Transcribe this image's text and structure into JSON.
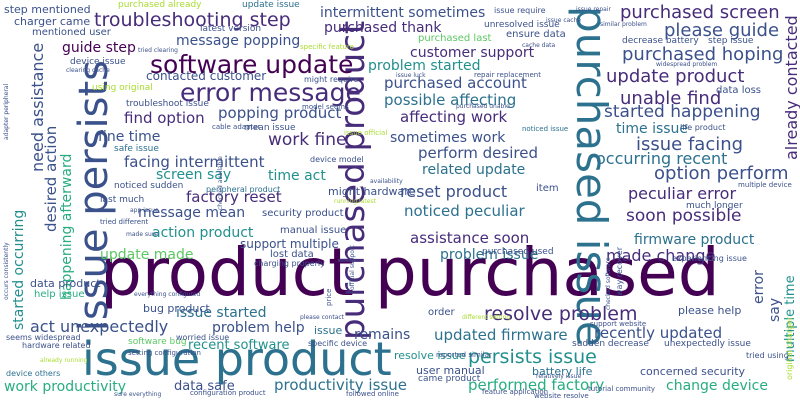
{
  "words": [
    {
      "id": "product-purchased",
      "text": "product purchased"
    },
    {
      "id": "issue-product",
      "text": "issue product"
    },
    {
      "id": "purchased-issue",
      "text": "purchased issue"
    },
    {
      "id": "issue-persists",
      "text": "issue persists"
    },
    {
      "id": "purchased-product",
      "text": "purchased product"
    },
    {
      "id": "software-update",
      "text": "software update"
    },
    {
      "id": "error-message",
      "text": "error message"
    },
    {
      "id": "troubleshooting-step",
      "text": "troubleshooting step"
    },
    {
      "id": "purchased-screen",
      "text": "purchased screen"
    },
    {
      "id": "please-guide",
      "text": "please guide"
    },
    {
      "id": "purchased-hoping",
      "text": "purchased hoping"
    },
    {
      "id": "update-product",
      "text": "update product"
    },
    {
      "id": "unable-find",
      "text": "unable find"
    },
    {
      "id": "started-happening",
      "text": "started happening"
    },
    {
      "id": "time-issue",
      "text": "time issue"
    },
    {
      "id": "issue-facing",
      "text": "issue facing"
    },
    {
      "id": "occurring-recent",
      "text": "occurring recent"
    },
    {
      "id": "option-perform",
      "text": "option perform"
    },
    {
      "id": "peculiar-error",
      "text": "peculiar error"
    },
    {
      "id": "soon-possible",
      "text": "soon possible"
    },
    {
      "id": "firmware-product",
      "text": "firmware product"
    },
    {
      "id": "made-change",
      "text": "made change"
    },
    {
      "id": "resolve-problem",
      "text": "resolve problem"
    },
    {
      "id": "persists-issue",
      "text": "persists issue"
    },
    {
      "id": "updated-firmware",
      "text": "updated firmware"
    },
    {
      "id": "recently-updated",
      "text": "recently updated"
    },
    {
      "id": "performed-factory",
      "text": "performed factory"
    },
    {
      "id": "change-device",
      "text": "change device"
    },
    {
      "id": "productivity-issue",
      "text": "productivity issue"
    },
    {
      "id": "work-productivity",
      "text": "work productivity"
    },
    {
      "id": "data-safe",
      "text": "data safe"
    },
    {
      "id": "act-unexpectedly",
      "text": "act unexpectedly"
    },
    {
      "id": "problem-help",
      "text": "problem help"
    },
    {
      "id": "recent-software",
      "text": "recent software"
    },
    {
      "id": "issue-started",
      "text": "issue started"
    },
    {
      "id": "remains",
      "text": "remains"
    },
    {
      "id": "issue",
      "text": "issue"
    },
    {
      "id": "assistance-soon",
      "text": "assistance soon"
    },
    {
      "id": "problem-issue",
      "text": "problem issue"
    },
    {
      "id": "reset-product",
      "text": "reset product"
    },
    {
      "id": "related-update",
      "text": "related update"
    },
    {
      "id": "noticed-peculiar",
      "text": "noticed peculiar"
    },
    {
      "id": "perform-desired",
      "text": "perform desired"
    },
    {
      "id": "sometimes-work",
      "text": "sometimes work"
    },
    {
      "id": "affecting-work",
      "text": "affecting work"
    },
    {
      "id": "possible-affecting",
      "text": "possible affecting"
    },
    {
      "id": "purchased-account",
      "text": "purchased account"
    },
    {
      "id": "customer-support",
      "text": "customer support"
    },
    {
      "id": "problem-started",
      "text": "problem started"
    },
    {
      "id": "intermittent-sometimes",
      "text": "intermittent sometimes"
    },
    {
      "id": "purchased-thank",
      "text": "purchased thank"
    },
    {
      "id": "message-popping",
      "text": "message popping"
    },
    {
      "id": "guide-step",
      "text": "guide step"
    },
    {
      "id": "contacted-customer",
      "text": "contacted customer"
    },
    {
      "id": "find-option",
      "text": "find option"
    },
    {
      "id": "popping-product",
      "text": "popping product"
    },
    {
      "id": "work-fine",
      "text": "work fine"
    },
    {
      "id": "fine-time",
      "text": "fine time"
    },
    {
      "id": "facing-intermittent",
      "text": "facing intermittent"
    },
    {
      "id": "screen-say",
      "text": "screen say"
    },
    {
      "id": "time-act",
      "text": "time act"
    },
    {
      "id": "factory-reset",
      "text": "factory reset"
    },
    {
      "id": "message-mean",
      "text": "message mean"
    },
    {
      "id": "action-product",
      "text": "action product"
    },
    {
      "id": "update-made",
      "text": "update made"
    },
    {
      "id": "support-multiple",
      "text": "support multiple"
    },
    {
      "id": "need-assistance",
      "text": "need assistance"
    },
    {
      "id": "desired-action",
      "text": "desired action"
    },
    {
      "id": "happening-afterward",
      "text": "happening afterward"
    },
    {
      "id": "started-occurring",
      "text": "started occurring"
    },
    {
      "id": "already-contacted",
      "text": "already contacted"
    },
    {
      "id": "step-mentioned",
      "text": "step mentioned"
    },
    {
      "id": "purchased-already",
      "text": "purchased already"
    },
    {
      "id": "update-issue",
      "text": "update issue"
    },
    {
      "id": "charger-came",
      "text": "charger came"
    },
    {
      "id": "mentioned-user",
      "text": "mentioned user"
    },
    {
      "id": "latest-version",
      "text": "latest version"
    },
    {
      "id": "device-issue",
      "text": "device issue"
    },
    {
      "id": "using-original",
      "text": "using original"
    },
    {
      "id": "troubleshoot-issue",
      "text": "troubleshoot issue"
    },
    {
      "id": "mean-issue",
      "text": "mean issue"
    },
    {
      "id": "safe-issue",
      "text": "safe issue"
    },
    {
      "id": "noticed-sudden",
      "text": "noticed sudden"
    },
    {
      "id": "last-much",
      "text": "last much"
    },
    {
      "id": "tried-different",
      "text": "tried different"
    },
    {
      "id": "security-product",
      "text": "security product"
    },
    {
      "id": "manual-issue",
      "text": "manual issue"
    },
    {
      "id": "might-hardware",
      "text": "might hardware"
    },
    {
      "id": "item",
      "text": "item"
    },
    {
      "id": "purchased-used",
      "text": "purchased used"
    },
    {
      "id": "data-product",
      "text": "data product"
    },
    {
      "id": "help-issue",
      "text": "help issue"
    },
    {
      "id": "bug-product",
      "text": "bug product"
    },
    {
      "id": "software-bug",
      "text": "software bug"
    },
    {
      "id": "hardware-related",
      "text": "hardware related"
    },
    {
      "id": "seems-widespread",
      "text": "seems widespread"
    },
    {
      "id": "device-others",
      "text": "device others"
    },
    {
      "id": "user-manual",
      "text": "user manual"
    },
    {
      "id": "came-product",
      "text": "came product"
    },
    {
      "id": "resolve-issue",
      "text": "resolve issue"
    },
    {
      "id": "battery-life",
      "text": "battery life"
    },
    {
      "id": "concerned-security",
      "text": "concerned security"
    },
    {
      "id": "unexpectedly-issue",
      "text": "unexpectedly issue"
    },
    {
      "id": "please-help",
      "text": "please help"
    },
    {
      "id": "data-loss",
      "text": "data loss"
    },
    {
      "id": "much-longer",
      "text": "much longer"
    },
    {
      "id": "multiple-time",
      "text": "multiple time"
    },
    {
      "id": "order",
      "text": "order"
    },
    {
      "id": "say",
      "text": "say"
    },
    {
      "id": "error",
      "text": "error"
    },
    {
      "id": "decrease-battery",
      "text": "decrease battery"
    },
    {
      "id": "ensure-data",
      "text": "ensure data"
    },
    {
      "id": "purchased-last",
      "text": "purchased last"
    },
    {
      "id": "unresolved-issue",
      "text": "unresolved issue"
    },
    {
      "id": "issue-require",
      "text": "issue require"
    },
    {
      "id": "lost-data",
      "text": "lost data"
    },
    {
      "id": "charging-properly",
      "text": "charging properly"
    },
    {
      "id": "worried-issue",
      "text": "worried issue"
    },
    {
      "id": "specific-device",
      "text": "specific device"
    },
    {
      "id": "sudden-decrease",
      "text": "sudden decrease"
    },
    {
      "id": "tried-using",
      "text": "tried using"
    },
    {
      "id": "life-product",
      "text": "life product"
    },
    {
      "id": "experiencing-issue",
      "text": "experiencing issue"
    },
    {
      "id": "multiple-device",
      "text": "multiple device"
    },
    {
      "id": "setting-configuration",
      "text": "setting configuration"
    },
    {
      "id": "configuration-product",
      "text": "configuration product"
    },
    {
      "id": "followed-online",
      "text": "followed online"
    },
    {
      "id": "website-resolve",
      "text": "website resolve"
    },
    {
      "id": "tutorial-community",
      "text": "tutorial community"
    },
    {
      "id": "reported-similar",
      "text": "reported similar"
    },
    {
      "id": "feature-application",
      "text": "feature application"
    },
    {
      "id": "support-website",
      "text": "support website"
    },
    {
      "id": "original-charger",
      "text": "original charger"
    },
    {
      "id": "peripheral-product",
      "text": "peripheral product"
    },
    {
      "id": "device-model",
      "text": "device model"
    },
    {
      "id": "issue-official",
      "text": "issue official"
    },
    {
      "id": "model-seems",
      "text": "model seems"
    },
    {
      "id": "cable-adapter",
      "text": "cable adapter"
    },
    {
      "id": "repair-replacement",
      "text": "repair replacement"
    },
    {
      "id": "might-require",
      "text": "might require"
    },
    {
      "id": "issue-luck",
      "text": "issue luck"
    },
    {
      "id": "specific-feature",
      "text": "specific feature"
    },
    {
      "id": "clearing-cache",
      "text": "clearing cache"
    },
    {
      "id": "cache-data",
      "text": "cache data"
    },
    {
      "id": "step-issue",
      "text": "step issue"
    },
    {
      "id": "similar-problem",
      "text": "similar problem"
    },
    {
      "id": "widespread-problem",
      "text": "widespread problem"
    },
    {
      "id": "issue-repair",
      "text": "issue repair"
    },
    {
      "id": "issue-cache",
      "text": "issue cache"
    },
    {
      "id": "tried-clearing",
      "text": "tried clearing"
    },
    {
      "id": "noticed-issue",
      "text": "noticed issue"
    },
    {
      "id": "running-latest",
      "text": "running latest"
    },
    {
      "id": "availability",
      "text": "availability"
    },
    {
      "id": "price",
      "text": "price"
    },
    {
      "id": "please-contact",
      "text": "please contact"
    },
    {
      "id": "app-issue",
      "text": "app issue"
    },
    {
      "id": "made-sure",
      "text": "made sure"
    },
    {
      "id": "different-setting",
      "text": "different setting"
    },
    {
      "id": "everything-configured",
      "text": "everything configured"
    },
    {
      "id": "relatively-issue",
      "text": "relatively issue"
    },
    {
      "id": "already-running",
      "text": "already running"
    },
    {
      "id": "sure-everything",
      "text": "sure everything"
    },
    {
      "id": "checked-software",
      "text": "checked software"
    },
    {
      "id": "way-recover",
      "text": "way recover"
    },
    {
      "id": "adapter-peripheral",
      "text": "adapter peripheral"
    },
    {
      "id": "official-support",
      "text": "official support"
    },
    {
      "id": "purchased-unable",
      "text": "purchased unable"
    },
    {
      "id": "checked-available",
      "text": "checked available"
    },
    {
      "id": "occurs-consistently",
      "text": "occurs consistently"
    }
  ]
}
